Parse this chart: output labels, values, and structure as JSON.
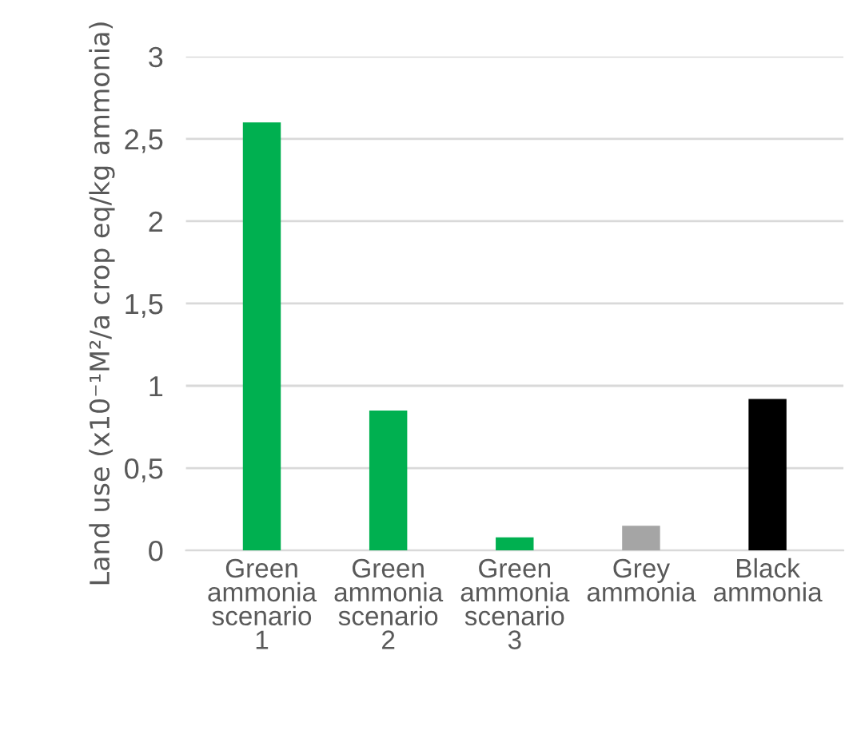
{
  "chart_data": {
    "type": "bar",
    "ylabel": "Land use (x10⁻¹M²/a crop eq/kg ammonia)",
    "categories": [
      "Green ammonia scenario 1",
      "Green ammonia scenario 2",
      "Green ammonia scenario 3",
      "Grey ammonia",
      "Black ammonia"
    ],
    "values": [
      2.6,
      0.85,
      0.08,
      0.15,
      0.92
    ],
    "colors": [
      "#00b050",
      "#00b050",
      "#00b050",
      "#a5a5a5",
      "#000000"
    ],
    "ylim": [
      0,
      3
    ],
    "yticks": [
      0,
      {
        "value": 0.5,
        "label": "0,5"
      },
      1,
      {
        "value": 1.5,
        "label": "1,5"
      },
      2,
      {
        "value": 2.5,
        "label": "2,5"
      },
      3
    ],
    "grid": "y"
  }
}
